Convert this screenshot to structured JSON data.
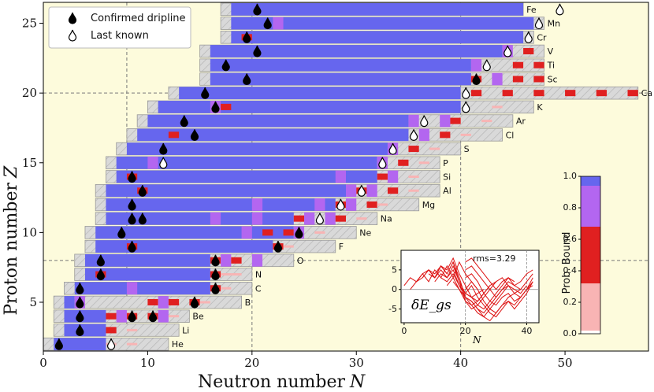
{
  "chart_data": {
    "type": "heatmap",
    "xlabel": "Neutron number",
    "xlabel_var": "N",
    "ylabel": "Proton number",
    "ylabel_var": "Z",
    "xlim": [
      0,
      58
    ],
    "ylim": [
      1.5,
      26.5
    ],
    "xticks": [
      0,
      10,
      20,
      30,
      40,
      50
    ],
    "yticks": [
      5,
      10,
      15,
      20,
      25
    ],
    "ref_lines_x": [
      8,
      20,
      40
    ],
    "ref_lines_y": [
      8,
      20
    ],
    "legend": {
      "position": "top-left",
      "confirmed": "Confirmed dripline",
      "last_known": "Last known"
    },
    "colorbar": {
      "label": "Prob. Bound",
      "ticks": [
        "0.0",
        "0.2",
        "0.4",
        "0.6",
        "0.8",
        "1.0"
      ]
    },
    "colors": {
      "bound": "#6666ee",
      "likely": "#b366f0",
      "unlikely": "#e02020",
      "lowprob": "#f8b4b4",
      "background": "#fdfbdc",
      "hatch": "#d9d9d9"
    },
    "elements": [
      {
        "Z": 2,
        "symbol": "He",
        "start": 0,
        "end": 12,
        "boundEnd": 6,
        "confirmed": [
          1
        ],
        "last": [
          6
        ],
        "blocks": [
          [
            6,
            "lowprob"
          ],
          [
            8,
            "lowprob"
          ]
        ]
      },
      {
        "Z": 3,
        "symbol": "Li",
        "start": 1,
        "end": 13,
        "boundEnd": 6,
        "confirmed": [
          3
        ],
        "last": [],
        "blocks": [
          [
            6,
            "unlikely"
          ],
          [
            8,
            "lowprob"
          ]
        ]
      },
      {
        "Z": 4,
        "symbol": "Be",
        "start": 1,
        "end": 14,
        "boundEnd": 6,
        "confirmed": [
          3,
          8,
          10
        ],
        "last": [],
        "blocks": [
          [
            6,
            "unlikely"
          ],
          [
            7,
            "likely"
          ],
          [
            8,
            "unlikely"
          ],
          [
            10,
            "unlikely"
          ],
          [
            11,
            "likely"
          ],
          [
            12,
            "lowprob"
          ]
        ]
      },
      {
        "Z": 5,
        "symbol": "B",
        "start": 1,
        "end": 19,
        "boundEnd": 3,
        "confirmed": [
          3,
          14
        ],
        "last": [],
        "blocks": [
          [
            3,
            "likely"
          ],
          [
            10,
            "unlikely"
          ],
          [
            11,
            "likely"
          ],
          [
            12,
            "unlikely"
          ],
          [
            14,
            "unlikely"
          ],
          [
            15,
            "lowprob"
          ]
        ]
      },
      {
        "Z": 6,
        "symbol": "C",
        "start": 2,
        "end": 20,
        "boundEnd": 16,
        "confirmed": [
          3,
          16
        ],
        "last": [],
        "blocks": [
          [
            8,
            "likely"
          ],
          [
            16,
            "unlikely"
          ],
          [
            17,
            "lowprob"
          ]
        ]
      },
      {
        "Z": 7,
        "symbol": "N",
        "start": 3,
        "end": 20,
        "boundEnd": 16,
        "confirmed": [
          5,
          16
        ],
        "last": [],
        "blocks": [
          [
            5,
            "unlikely"
          ],
          [
            16,
            "unlikely"
          ],
          [
            17,
            "lowprob"
          ],
          [
            18,
            "lowprob"
          ]
        ]
      },
      {
        "Z": 8,
        "symbol": "O",
        "start": 3,
        "end": 24,
        "boundEnd": 16,
        "confirmed": [
          5,
          16
        ],
        "last": [],
        "blocks": [
          [
            16,
            "unlikely"
          ],
          [
            17,
            "likely"
          ],
          [
            18,
            "unlikely"
          ],
          [
            20,
            "likely"
          ]
        ]
      },
      {
        "Z": 9,
        "symbol": "F",
        "start": 4,
        "end": 28,
        "boundEnd": 22,
        "confirmed": [
          8,
          22
        ],
        "last": [],
        "blocks": [
          [
            8,
            "unlikely"
          ],
          [
            22,
            "unlikely"
          ],
          [
            23,
            "lowprob"
          ]
        ]
      },
      {
        "Z": 10,
        "symbol": "Ne",
        "start": 4,
        "end": 30,
        "boundEnd": 24,
        "confirmed": [
          7,
          24
        ],
        "last": [],
        "blocks": [
          [
            19,
            "likely"
          ],
          [
            21,
            "unlikely"
          ],
          [
            23,
            "unlikely"
          ],
          [
            24,
            "likely"
          ],
          [
            26,
            "lowprob"
          ]
        ]
      },
      {
        "Z": 11,
        "symbol": "Na",
        "start": 5,
        "end": 32,
        "boundEnd": 24,
        "confirmed": [
          8,
          9
        ],
        "last": [
          26
        ],
        "blocks": [
          [
            16,
            "likely"
          ],
          [
            20,
            "likely"
          ],
          [
            24,
            "unlikely"
          ],
          [
            25,
            "likely"
          ],
          [
            27,
            "likely"
          ],
          [
            28,
            "unlikely"
          ],
          [
            30,
            "lowprob"
          ]
        ]
      },
      {
        "Z": 12,
        "symbol": "Mg",
        "start": 5,
        "end": 36,
        "boundEnd": 28,
        "confirmed": [
          8
        ],
        "last": [
          28
        ],
        "blocks": [
          [
            20,
            "likely"
          ],
          [
            26,
            "likely"
          ],
          [
            28,
            "unlikely"
          ],
          [
            29,
            "likely"
          ],
          [
            31,
            "unlikely"
          ],
          [
            32,
            "lowprob"
          ]
        ]
      },
      {
        "Z": 13,
        "symbol": "Al",
        "start": 5,
        "end": 38,
        "boundEnd": 29,
        "confirmed": [
          9
        ],
        "last": [
          30
        ],
        "blocks": [
          [
            9,
            "unlikely"
          ],
          [
            29,
            "likely"
          ],
          [
            30,
            "unlikely"
          ],
          [
            31,
            "likely"
          ],
          [
            33,
            "unlikely"
          ],
          [
            35,
            "lowprob"
          ]
        ]
      },
      {
        "Z": 14,
        "symbol": "Si",
        "start": 6,
        "end": 38,
        "boundEnd": 32,
        "confirmed": [
          8
        ],
        "last": [],
        "blocks": [
          [
            8,
            "unlikely"
          ],
          [
            28,
            "likely"
          ],
          [
            32,
            "unlikely"
          ],
          [
            33,
            "likely"
          ],
          [
            35,
            "lowprob"
          ]
        ]
      },
      {
        "Z": 15,
        "symbol": "P",
        "start": 6,
        "end": 38,
        "boundEnd": 32,
        "confirmed": [],
        "last": [
          11,
          32
        ],
        "blocks": [
          [
            10,
            "likely"
          ],
          [
            32,
            "likely"
          ],
          [
            34,
            "unlikely"
          ],
          [
            36,
            "lowprob"
          ]
        ]
      },
      {
        "Z": 16,
        "symbol": "S",
        "start": 7,
        "end": 40,
        "boundEnd": 33,
        "confirmed": [
          11
        ],
        "last": [
          33
        ],
        "blocks": [
          [
            33,
            "likely"
          ],
          [
            35,
            "unlikely"
          ],
          [
            37,
            "lowprob"
          ]
        ]
      },
      {
        "Z": 17,
        "symbol": "Cl",
        "start": 8,
        "end": 44,
        "boundEnd": 35,
        "confirmed": [
          14
        ],
        "last": [
          35
        ],
        "blocks": [
          [
            12,
            "unlikely"
          ],
          [
            36,
            "likely"
          ],
          [
            38,
            "unlikely"
          ],
          [
            40,
            "lowprob"
          ]
        ]
      },
      {
        "Z": 18,
        "symbol": "Ar",
        "start": 9,
        "end": 45,
        "boundEnd": 35,
        "confirmed": [
          13
        ],
        "last": [
          36
        ],
        "blocks": [
          [
            35,
            "likely"
          ],
          [
            38,
            "likely"
          ],
          [
            39,
            "unlikely"
          ],
          [
            42,
            "lowprob"
          ]
        ]
      },
      {
        "Z": 19,
        "symbol": "K",
        "start": 10,
        "end": 47,
        "boundEnd": 40,
        "confirmed": [
          16
        ],
        "last": [
          40
        ],
        "blocks": [
          [
            16,
            "likely"
          ],
          [
            17,
            "unlikely"
          ],
          [
            43,
            "lowprob"
          ]
        ]
      },
      {
        "Z": 20,
        "symbol": "Ca",
        "start": 12,
        "end": 57,
        "boundEnd": 40,
        "confirmed": [
          15
        ],
        "last": [
          40
        ],
        "blocks": [
          [
            41,
            "unlikely"
          ],
          [
            44,
            "unlikely"
          ],
          [
            47,
            "unlikely"
          ],
          [
            50,
            "unlikely"
          ],
          [
            53,
            "unlikely"
          ],
          [
            56,
            "unlikely"
          ]
        ]
      },
      {
        "Z": 21,
        "symbol": "Sc",
        "start": 15,
        "end": 48,
        "boundEnd": 41,
        "confirmed": [
          19,
          41
        ],
        "last": [],
        "blocks": [
          [
            41,
            "unlikely"
          ],
          [
            43,
            "likely"
          ],
          [
            45,
            "unlikely"
          ],
          [
            47,
            "unlikely"
          ]
        ]
      },
      {
        "Z": 22,
        "symbol": "Ti",
        "start": 15,
        "end": 48,
        "boundEnd": 41,
        "confirmed": [
          17
        ],
        "last": [
          42
        ],
        "blocks": [
          [
            41,
            "likely"
          ],
          [
            45,
            "unlikely"
          ],
          [
            47,
            "unlikely"
          ]
        ]
      },
      {
        "Z": 23,
        "symbol": "V",
        "start": 15,
        "end": 48,
        "boundEnd": 44,
        "confirmed": [
          20
        ],
        "last": [
          44
        ],
        "blocks": [
          [
            44,
            "likely"
          ],
          [
            46,
            "unlikely"
          ]
        ]
      },
      {
        "Z": 24,
        "symbol": "Cr",
        "start": 17,
        "end": 47,
        "boundEnd": 46,
        "confirmed": [
          19
        ],
        "last": [
          46
        ],
        "blocks": [
          [
            19,
            "unlikely"
          ]
        ]
      },
      {
        "Z": 25,
        "symbol": "Mn",
        "start": 17,
        "end": 48,
        "boundEnd": 47,
        "confirmed": [
          21
        ],
        "last": [
          47
        ],
        "blocks": [
          [
            22,
            "likely"
          ]
        ]
      },
      {
        "Z": 26,
        "symbol": "Fe",
        "start": 17,
        "end": 46,
        "boundEnd": 46,
        "confirmed": [
          20
        ],
        "last": [
          49
        ],
        "blocks": []
      }
    ],
    "inset": {
      "xlabel": "N",
      "ylabel": "δE_gs",
      "annotation": "rms=3.29",
      "xticks": [
        0,
        20,
        40
      ],
      "yticks": [
        -5,
        0,
        5
      ],
      "xlim": [
        -1,
        44
      ],
      "ylim": [
        -8.5,
        10
      ],
      "curve_color": "#dd1111",
      "series": [
        {
          "x": [
            0,
            2,
            4,
            6,
            8,
            10,
            12,
            14,
            16,
            18,
            20,
            22,
            24
          ],
          "y": [
            1,
            3,
            2,
            4,
            2,
            5,
            3,
            6,
            3,
            7,
            4,
            2,
            0
          ]
        },
        {
          "x": [
            2,
            4,
            6,
            8,
            10,
            12,
            14,
            16,
            18,
            20,
            22,
            24,
            26
          ],
          "y": [
            0,
            2,
            3,
            5,
            3,
            6,
            4,
            7,
            2,
            -1,
            -2,
            -1,
            0
          ]
        },
        {
          "x": [
            4,
            6,
            8,
            10,
            12,
            14,
            16,
            18,
            20,
            22,
            24,
            26,
            28
          ],
          "y": [
            2,
            4,
            5,
            3,
            6,
            5,
            8,
            4,
            1,
            -2,
            -3,
            -1,
            1
          ]
        },
        {
          "x": [
            6,
            8,
            10,
            12,
            14,
            16,
            18,
            20,
            22,
            24,
            26,
            28,
            30
          ],
          "y": [
            3,
            5,
            4,
            6,
            4,
            7,
            3,
            -2,
            -4,
            -3,
            -1,
            1,
            2
          ]
        },
        {
          "x": [
            8,
            10,
            12,
            14,
            16,
            18,
            20,
            22,
            24,
            26,
            28,
            30,
            32,
            34
          ],
          "y": [
            4,
            3,
            5,
            3,
            6,
            2,
            -3,
            -5,
            -4,
            -2,
            0,
            2,
            3,
            1
          ]
        },
        {
          "x": [
            10,
            12,
            14,
            16,
            18,
            20,
            22,
            24,
            26,
            28,
            30,
            32,
            34,
            36
          ],
          "y": [
            2,
            4,
            3,
            5,
            1,
            -1,
            -2,
            -4,
            -5,
            -3,
            -1,
            1,
            3,
            2
          ]
        },
        {
          "x": [
            12,
            14,
            16,
            18,
            20,
            22,
            24,
            26,
            28,
            30,
            32,
            34,
            36,
            38
          ],
          "y": [
            3,
            2,
            4,
            1,
            -2,
            -3,
            -5,
            -6,
            -4,
            -2,
            0,
            2,
            1,
            0
          ]
        },
        {
          "x": [
            14,
            16,
            18,
            20,
            22,
            24,
            26,
            28,
            30,
            32,
            34,
            36,
            38,
            40
          ],
          "y": [
            1,
            3,
            0,
            -3,
            -4,
            -6,
            -7,
            -5,
            -3,
            -1,
            1,
            0,
            -1,
            1
          ]
        },
        {
          "x": [
            16,
            18,
            20,
            22,
            24,
            26,
            28,
            30,
            32,
            34,
            36,
            38,
            40,
            42
          ],
          "y": [
            2,
            0,
            -2,
            -3,
            -5,
            -7,
            -8,
            -6,
            -4,
            -2,
            -1,
            -2,
            0,
            2
          ]
        },
        {
          "x": [
            18,
            20,
            22,
            24,
            26,
            28,
            30,
            32,
            34,
            36,
            38,
            40,
            42
          ],
          "y": [
            1,
            -1,
            1,
            -2,
            -4,
            -6,
            -7,
            -5,
            -3,
            -4,
            -2,
            0,
            1
          ]
        },
        {
          "x": [
            20,
            22,
            24,
            26,
            28,
            30,
            32,
            34,
            36,
            38,
            40,
            42
          ],
          "y": [
            0,
            2,
            0,
            -3,
            -5,
            -6,
            -4,
            -3,
            -5,
            -3,
            -1,
            2
          ]
        },
        {
          "x": [
            20,
            22,
            24,
            26,
            28,
            30,
            32,
            34,
            36,
            38,
            40,
            42
          ],
          "y": [
            3,
            4,
            2,
            -1,
            -3,
            -4,
            -2,
            -1,
            -3,
            -2,
            0,
            3
          ]
        },
        {
          "x": [
            20,
            22,
            24,
            26,
            28,
            30,
            32,
            34,
            36,
            38,
            40,
            42
          ],
          "y": [
            5,
            6,
            4,
            2,
            0,
            -2,
            0,
            1,
            -1,
            0,
            2,
            4
          ]
        },
        {
          "x": [
            20,
            22,
            24,
            26,
            28,
            30,
            32,
            34,
            36,
            38,
            40,
            42
          ],
          "y": [
            7,
            8,
            6,
            4,
            2,
            0,
            2,
            3,
            1,
            2,
            4,
            5
          ]
        }
      ]
    }
  }
}
